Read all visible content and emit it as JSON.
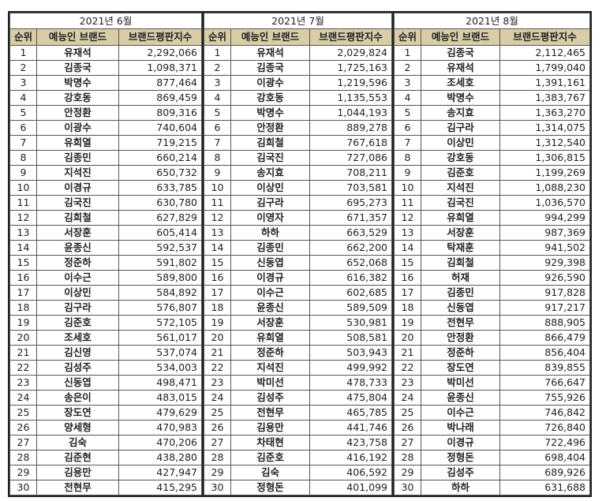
{
  "headers": {
    "rank": "순위",
    "brand": "예능인 브랜드",
    "score": "브랜드평판지수"
  },
  "colors": {
    "header_bg": "#d9cda6",
    "border": "#222222"
  },
  "months": [
    {
      "title": "2021년 6월",
      "rows": [
        [
          "1",
          "유재석",
          "2,292,066"
        ],
        [
          "2",
          "김종국",
          "1,098,371"
        ],
        [
          "3",
          "박명수",
          "877,464"
        ],
        [
          "4",
          "강호동",
          "869,459"
        ],
        [
          "5",
          "안정환",
          "809,316"
        ],
        [
          "6",
          "이광수",
          "740,604"
        ],
        [
          "7",
          "유희열",
          "719,215"
        ],
        [
          "8",
          "김종민",
          "660,214"
        ],
        [
          "9",
          "지석진",
          "650,732"
        ],
        [
          "10",
          "이경규",
          "633,785"
        ],
        [
          "11",
          "김국진",
          "630,780"
        ],
        [
          "12",
          "김희철",
          "627,829"
        ],
        [
          "13",
          "서장훈",
          "605,414"
        ],
        [
          "14",
          "윤종신",
          "592,537"
        ],
        [
          "15",
          "정준하",
          "591,802"
        ],
        [
          "16",
          "이수근",
          "589,800"
        ],
        [
          "17",
          "이상민",
          "584,892"
        ],
        [
          "18",
          "김구라",
          "576,807"
        ],
        [
          "19",
          "김준호",
          "572,105"
        ],
        [
          "20",
          "조세호",
          "561,017"
        ],
        [
          "21",
          "김신영",
          "537,074"
        ],
        [
          "22",
          "김성주",
          "534,003"
        ],
        [
          "23",
          "신동엽",
          "498,471"
        ],
        [
          "24",
          "송은이",
          "483,015"
        ],
        [
          "25",
          "장도연",
          "479,629"
        ],
        [
          "26",
          "양세형",
          "470,983"
        ],
        [
          "27",
          "김숙",
          "470,206"
        ],
        [
          "28",
          "김준현",
          "438,280"
        ],
        [
          "29",
          "김용만",
          "427,947"
        ],
        [
          "30",
          "전현무",
          "415,295"
        ]
      ]
    },
    {
      "title": "2021년 7월",
      "rows": [
        [
          "1",
          "유재석",
          "2,029,824"
        ],
        [
          "2",
          "김종국",
          "1,725,163"
        ],
        [
          "3",
          "이광수",
          "1,219,596"
        ],
        [
          "4",
          "강호동",
          "1,135,553"
        ],
        [
          "5",
          "박명수",
          "1,044,193"
        ],
        [
          "6",
          "안정환",
          "889,278"
        ],
        [
          "7",
          "김희철",
          "767,618"
        ],
        [
          "8",
          "김국진",
          "727,086"
        ],
        [
          "9",
          "송지효",
          "708,211"
        ],
        [
          "10",
          "이상민",
          "703,581"
        ],
        [
          "11",
          "김구라",
          "695,273"
        ],
        [
          "12",
          "이영자",
          "671,357"
        ],
        [
          "13",
          "하하",
          "663,529"
        ],
        [
          "14",
          "김종민",
          "662,200"
        ],
        [
          "15",
          "신동엽",
          "652,068"
        ],
        [
          "16",
          "이경규",
          "616,382"
        ],
        [
          "17",
          "이수근",
          "602,685"
        ],
        [
          "18",
          "윤종신",
          "589,509"
        ],
        [
          "19",
          "서장훈",
          "530,981"
        ],
        [
          "20",
          "유희열",
          "508,581"
        ],
        [
          "21",
          "정준하",
          "503,943"
        ],
        [
          "22",
          "지석진",
          "499,992"
        ],
        [
          "23",
          "박미선",
          "478,733"
        ],
        [
          "24",
          "김성주",
          "475,804"
        ],
        [
          "25",
          "전현무",
          "465,785"
        ],
        [
          "26",
          "김용만",
          "441,746"
        ],
        [
          "27",
          "차태현",
          "423,758"
        ],
        [
          "28",
          "김준호",
          "416,192"
        ],
        [
          "29",
          "김숙",
          "406,592"
        ],
        [
          "30",
          "정형돈",
          "401,099"
        ]
      ]
    },
    {
      "title": "2021년 8월",
      "rows": [
        [
          "1",
          "김종국",
          "2,112,465"
        ],
        [
          "2",
          "유재석",
          "1,799,040"
        ],
        [
          "3",
          "조세호",
          "1,391,161"
        ],
        [
          "4",
          "박명수",
          "1,383,767"
        ],
        [
          "5",
          "송지효",
          "1,363,270"
        ],
        [
          "6",
          "김구라",
          "1,314,075"
        ],
        [
          "7",
          "이상민",
          "1,312,540"
        ],
        [
          "8",
          "강호동",
          "1,306,815"
        ],
        [
          "9",
          "김준호",
          "1,199,269"
        ],
        [
          "10",
          "지석진",
          "1,088,230"
        ],
        [
          "11",
          "김국진",
          "1,036,570"
        ],
        [
          "12",
          "유희열",
          "994,299"
        ],
        [
          "13",
          "서장훈",
          "987,369"
        ],
        [
          "14",
          "탁재훈",
          "941,502"
        ],
        [
          "15",
          "김희철",
          "929,398"
        ],
        [
          "16",
          "허재",
          "926,590"
        ],
        [
          "17",
          "김종민",
          "917,828"
        ],
        [
          "18",
          "신동엽",
          "917,217"
        ],
        [
          "19",
          "전현무",
          "888,905"
        ],
        [
          "20",
          "안정환",
          "866,479"
        ],
        [
          "21",
          "정준하",
          "856,404"
        ],
        [
          "22",
          "장도연",
          "839,855"
        ],
        [
          "23",
          "박미선",
          "766,647"
        ],
        [
          "24",
          "윤종신",
          "755,926"
        ],
        [
          "25",
          "이수근",
          "746,842"
        ],
        [
          "26",
          "박나래",
          "726,840"
        ],
        [
          "27",
          "이경규",
          "722,496"
        ],
        [
          "28",
          "정형돈",
          "698,404"
        ],
        [
          "29",
          "김성주",
          "689,926"
        ],
        [
          "30",
          "하하",
          "631,688"
        ]
      ]
    }
  ]
}
